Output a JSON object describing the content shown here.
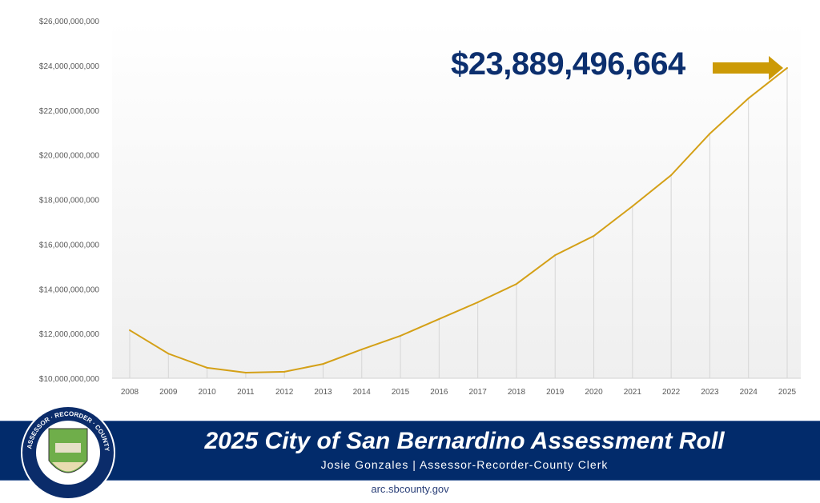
{
  "chart_data": {
    "type": "line",
    "categories": [
      "2008",
      "2009",
      "2010",
      "2011",
      "2012",
      "2013",
      "2014",
      "2015",
      "2016",
      "2017",
      "2018",
      "2019",
      "2020",
      "2021",
      "2022",
      "2023",
      "2024",
      "2025"
    ],
    "series": [
      {
        "values": [
          12150000000,
          11100000000,
          10470000000,
          10250000000,
          10290000000,
          10640000000,
          11290000000,
          11900000000,
          12650000000,
          13400000000,
          14220000000,
          15510000000,
          16370000000,
          17700000000,
          19090000000,
          20950000000,
          22530000000,
          23889496664
        ]
      }
    ],
    "ylim": [
      10000000000,
      26000000000
    ],
    "ytick_labels": [
      "$10,000,000,000",
      "$12,000,000,000",
      "$14,000,000,000",
      "$16,000,000,000",
      "$18,000,000,000",
      "$20,000,000,000",
      "$22,000,000,000",
      "$24,000,000,000",
      "$26,000,000,000"
    ],
    "grid": "vertical drop lines",
    "line_color": "#d4a017",
    "annotation": "$23,889,496,664"
  },
  "banner": {
    "title": "2025 City of San Bernardino Assessment Roll",
    "subtitle": "Josie Gonzales | Assessor-Recorder-County Clerk",
    "url": "arc.sbcounty.gov",
    "logo_text": "ASSESSOR · RECORDER · COUNTY CLERK",
    "color": "#022b6b"
  }
}
